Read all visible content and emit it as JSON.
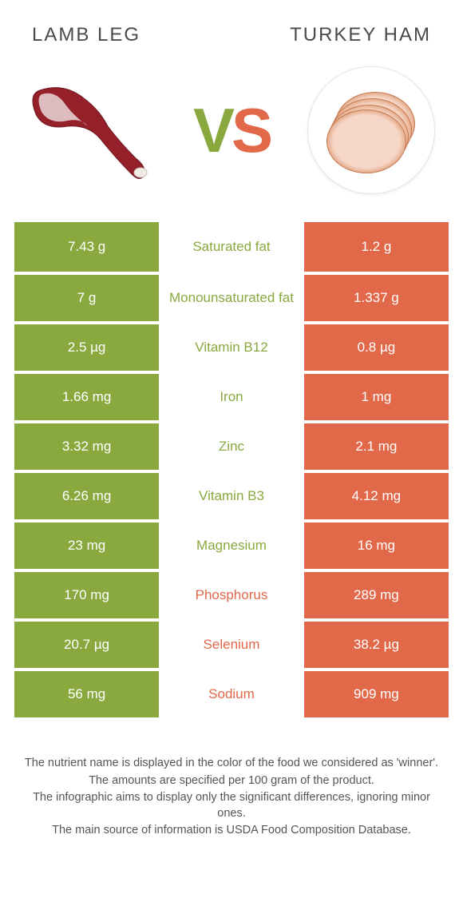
{
  "colors": {
    "left": "#89a93f",
    "right": "#e2684a",
    "row_divider": "#ffffff",
    "text_light": "#ffffff",
    "text_dark": "#4a4a4a"
  },
  "header": {
    "left_title": "Lamb leg",
    "right_title": "Turkey ham"
  },
  "vs": {
    "v": "V",
    "s": "S"
  },
  "rows": [
    {
      "left": "7.43 g",
      "label": "Saturated fat",
      "right": "1.2 g",
      "winner": "left"
    },
    {
      "left": "7 g",
      "label": "Monounsaturated fat",
      "right": "1.337 g",
      "winner": "left"
    },
    {
      "left": "2.5 µg",
      "label": "Vitamin B12",
      "right": "0.8 µg",
      "winner": "left"
    },
    {
      "left": "1.66 mg",
      "label": "Iron",
      "right": "1 mg",
      "winner": "left"
    },
    {
      "left": "3.32 mg",
      "label": "Zinc",
      "right": "2.1 mg",
      "winner": "left"
    },
    {
      "left": "6.26 mg",
      "label": "Vitamin B3",
      "right": "4.12 mg",
      "winner": "left"
    },
    {
      "left": "23 mg",
      "label": "Magnesium",
      "right": "16 mg",
      "winner": "left"
    },
    {
      "left": "170 mg",
      "label": "Phosphorus",
      "right": "289 mg",
      "winner": "right"
    },
    {
      "left": "20.7 µg",
      "label": "Selenium",
      "right": "38.2 µg",
      "winner": "right"
    },
    {
      "left": "56 mg",
      "label": "Sodium",
      "right": "909 mg",
      "winner": "right"
    }
  ],
  "footnotes": [
    "The nutrient name is displayed in the color of the food we considered as 'winner'.",
    "The amounts are specified per 100 gram of the product.",
    "The infographic aims to display only the significant differences, ignoring minor ones.",
    "The main source of information is USDA Food Composition Database."
  ]
}
